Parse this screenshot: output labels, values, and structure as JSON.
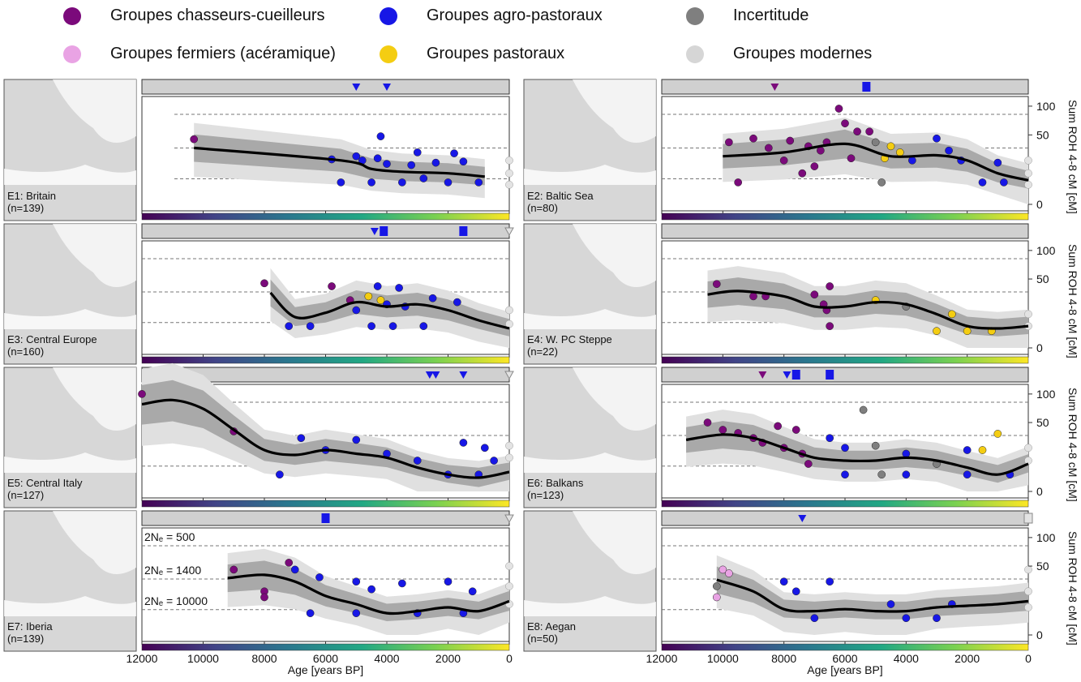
{
  "legend": [
    {
      "label": "Groupes chasseurs-cueilleurs",
      "color": "#7b0a7b"
    },
    {
      "label": "Groupes agro-pastoraux",
      "color": "#1717e6"
    },
    {
      "label": "Incertitude",
      "color": "#7f7f7f"
    },
    {
      "label": "Groupes fermiers (acéramique)",
      "color": "#e9a3e4"
    },
    {
      "label": "Groupes pastoraux",
      "color": "#f4cd12"
    },
    {
      "label": "Groupes modernes",
      "color": "#d6d6d6"
    }
  ],
  "right_axis_label": "Sum ROH 4-8 cM [cM]",
  "right_ticks": [
    "100",
    "50",
    "0"
  ],
  "x_axis": {
    "label": "Age [years BP]",
    "ticks": [
      12000,
      10000,
      8000,
      6000,
      4000,
      2000,
      0
    ],
    "range": [
      12000,
      0
    ]
  },
  "ne_labels": [
    "2Nₑ = 500",
    "2Nₑ = 1400",
    "2Nₑ = 10000"
  ],
  "chart_data": [
    {
      "type": "scatter",
      "region": "E1: Britain",
      "n": "(n=139)",
      "ages": [
        10300,
        5500,
        4500,
        3500,
        2000,
        800
      ],
      "fit": [
        33,
        20,
        13,
        11,
        10,
        8
      ],
      "markers": [
        {
          "age": 5000,
          "shape": "tri",
          "group": "agro"
        },
        {
          "age": 4000,
          "shape": "tri",
          "group": "agro"
        }
      ],
      "points": [
        [
          10300,
          44,
          "hg"
        ],
        [
          4200,
          48,
          "agro"
        ],
        [
          3000,
          28,
          "agro"
        ],
        [
          1800,
          27,
          "agro"
        ],
        [
          5800,
          21,
          "agro"
        ],
        [
          4800,
          20,
          "agro"
        ],
        [
          4000,
          17,
          "agro"
        ],
        [
          3200,
          16,
          "agro"
        ],
        [
          2400,
          18,
          "agro"
        ],
        [
          1500,
          19,
          "agro"
        ],
        [
          5500,
          5,
          "agro"
        ],
        [
          4500,
          5,
          "agro"
        ],
        [
          3500,
          5,
          "agro"
        ],
        [
          2000,
          5,
          "agro"
        ],
        [
          1000,
          5,
          "agro"
        ],
        [
          5000,
          24,
          "agro"
        ],
        [
          4300,
          22,
          "agro"
        ],
        [
          2800,
          7,
          "agro"
        ],
        [
          0,
          20,
          "modern"
        ],
        [
          0,
          10,
          "modern"
        ],
        [
          0,
          4,
          "modern"
        ]
      ]
    },
    {
      "type": "scatter",
      "region": "E2: Baltic Sea",
      "n": "(n=80)",
      "ages": [
        10000,
        8000,
        6000,
        4500,
        3000,
        2000,
        1000,
        0
      ],
      "fit": [
        24,
        28,
        38,
        24,
        25,
        20,
        10,
        6
      ],
      "markers": [
        {
          "age": 8300,
          "shape": "tri",
          "group": "hg"
        },
        {
          "age": 5300,
          "shape": "sq",
          "group": "agro"
        }
      ],
      "points": [
        [
          9800,
          40,
          "hg"
        ],
        [
          9000,
          45,
          "hg"
        ],
        [
          8500,
          33,
          "hg"
        ],
        [
          7800,
          42,
          "hg"
        ],
        [
          7200,
          35,
          "hg"
        ],
        [
          6600,
          40,
          "hg"
        ],
        [
          6200,
          95,
          "hg"
        ],
        [
          6000,
          68,
          "hg"
        ],
        [
          5600,
          55,
          "hg"
        ],
        [
          5200,
          55,
          "hg"
        ],
        [
          8000,
          20,
          "hg"
        ],
        [
          7400,
          10,
          "hg"
        ],
        [
          6800,
          30,
          "hg"
        ],
        [
          5800,
          22,
          "hg"
        ],
        [
          9500,
          5,
          "hg"
        ],
        [
          7000,
          15,
          "hg"
        ],
        [
          5000,
          40,
          "unc"
        ],
        [
          4800,
          5,
          "unc"
        ],
        [
          4500,
          35,
          "past"
        ],
        [
          4200,
          28,
          "past"
        ],
        [
          4700,
          22,
          "past"
        ],
        [
          3000,
          45,
          "agro"
        ],
        [
          2600,
          30,
          "agro"
        ],
        [
          2200,
          20,
          "agro"
        ],
        [
          3800,
          20,
          "agro"
        ],
        [
          1000,
          18,
          "agro"
        ],
        [
          1500,
          5,
          "agro"
        ],
        [
          800,
          5,
          "agro"
        ],
        [
          0,
          20,
          "modern"
        ],
        [
          0,
          10,
          "modern"
        ],
        [
          0,
          4,
          "modern"
        ]
      ]
    },
    {
      "type": "scatter",
      "region": "E3: Central Europe",
      "n": "(n=160)",
      "ages": [
        7800,
        7000,
        6000,
        5000,
        4000,
        3000,
        2000,
        1000,
        0
      ],
      "fit": [
        32,
        10,
        13,
        22,
        18,
        20,
        15,
        8,
        4
      ],
      "markers": [
        {
          "age": 4400,
          "shape": "tri",
          "group": "agro"
        },
        {
          "age": 4100,
          "shape": "sq",
          "group": "agro"
        },
        {
          "age": 1500,
          "shape": "sq",
          "group": "agro"
        },
        {
          "age": 0,
          "shape": "tri",
          "group": "modern"
        }
      ],
      "points": [
        [
          8000,
          44,
          "hg"
        ],
        [
          5800,
          40,
          "hg"
        ],
        [
          5200,
          24,
          "hg"
        ],
        [
          4600,
          28,
          "past"
        ],
        [
          4200,
          24,
          "past"
        ],
        [
          4300,
          40,
          "agro"
        ],
        [
          3600,
          38,
          "agro"
        ],
        [
          4000,
          20,
          "agro"
        ],
        [
          3400,
          18,
          "agro"
        ],
        [
          2500,
          26,
          "agro"
        ],
        [
          1700,
          22,
          "agro"
        ],
        [
          5000,
          15,
          "agro"
        ],
        [
          7200,
          5,
          "agro"
        ],
        [
          4500,
          5,
          "agro"
        ],
        [
          3800,
          5,
          "agro"
        ],
        [
          2800,
          5,
          "agro"
        ],
        [
          6500,
          5,
          "agro"
        ],
        [
          0,
          15,
          "modern"
        ],
        [
          0,
          6,
          "modern"
        ]
      ]
    },
    {
      "type": "scatter",
      "region": "E4: W. PC Steppe",
      "n": "(n=22)",
      "ages": [
        10500,
        9500,
        8000,
        7000,
        6000,
        5000,
        4000,
        3000,
        2000,
        1000,
        0
      ],
      "fit": [
        30,
        34,
        28,
        18,
        18,
        22,
        20,
        12,
        5,
        4,
        5
      ],
      "markers": [],
      "points": [
        [
          10200,
          43,
          "hg"
        ],
        [
          9000,
          28,
          "hg"
        ],
        [
          8600,
          28,
          "hg"
        ],
        [
          7000,
          30,
          "hg"
        ],
        [
          6500,
          40,
          "hg"
        ],
        [
          6700,
          20,
          "hg"
        ],
        [
          6600,
          15,
          "hg"
        ],
        [
          6500,
          5,
          "hg"
        ],
        [
          5000,
          24,
          "past"
        ],
        [
          4000,
          18,
          "unc"
        ],
        [
          2500,
          12,
          "past"
        ],
        [
          3000,
          3,
          "past"
        ],
        [
          2000,
          3,
          "past"
        ],
        [
          1200,
          3,
          "past"
        ],
        [
          0,
          12,
          "modern"
        ],
        [
          0,
          5,
          "modern"
        ]
      ]
    },
    {
      "type": "scatter",
      "region": "E5: Central Italy",
      "n": "(n=127)",
      "ages": [
        12000,
        11000,
        10000,
        9000,
        8000,
        7000,
        6000,
        5000,
        4000,
        3000,
        2000,
        1000,
        0
      ],
      "fit": [
        80,
        88,
        72,
        40,
        18,
        14,
        18,
        15,
        12,
        6,
        3,
        2,
        4
      ],
      "markers": [
        {
          "age": 10800,
          "shape": "tri",
          "group": "hg"
        },
        {
          "age": 2600,
          "shape": "tri",
          "group": "agro"
        },
        {
          "age": 2400,
          "shape": "tri",
          "group": "agro"
        },
        {
          "age": 1500,
          "shape": "tri",
          "group": "agro"
        },
        {
          "age": 0,
          "shape": "tri",
          "group": "modern"
        }
      ],
      "points": [
        [
          12000,
          100,
          "hg"
        ],
        [
          9000,
          38,
          "hg"
        ],
        [
          6800,
          30,
          "agro"
        ],
        [
          6000,
          18,
          "agro"
        ],
        [
          5000,
          28,
          "agro"
        ],
        [
          4000,
          15,
          "agro"
        ],
        [
          3000,
          10,
          "agro"
        ],
        [
          1500,
          25,
          "agro"
        ],
        [
          800,
          20,
          "agro"
        ],
        [
          500,
          10,
          "agro"
        ],
        [
          7500,
          3,
          "agro"
        ],
        [
          2000,
          3,
          "agro"
        ],
        [
          1000,
          3,
          "agro"
        ],
        [
          0,
          22,
          "modern"
        ],
        [
          0,
          12,
          "modern"
        ]
      ]
    },
    {
      "type": "scatter",
      "region": "E6: Balkans",
      "n": "(n=123)",
      "ages": [
        11200,
        10000,
        9000,
        8000,
        7000,
        6000,
        5000,
        4000,
        3000,
        2000,
        1000,
        0
      ],
      "fit": [
        28,
        34,
        30,
        20,
        12,
        10,
        10,
        12,
        10,
        6,
        3,
        8
      ],
      "markers": [
        {
          "age": 8700,
          "shape": "tri",
          "group": "hg"
        },
        {
          "age": 7900,
          "shape": "tri",
          "group": "agro"
        },
        {
          "age": 7600,
          "shape": "sq",
          "group": "agro"
        },
        {
          "age": 6500,
          "shape": "sq",
          "group": "agro"
        }
      ],
      "points": [
        [
          10500,
          50,
          "hg"
        ],
        [
          10000,
          40,
          "hg"
        ],
        [
          9500,
          36,
          "hg"
        ],
        [
          9000,
          30,
          "hg"
        ],
        [
          8700,
          25,
          "hg"
        ],
        [
          8200,
          45,
          "hg"
        ],
        [
          8000,
          20,
          "hg"
        ],
        [
          7600,
          40,
          "hg"
        ],
        [
          7400,
          15,
          "hg"
        ],
        [
          7200,
          8,
          "hg"
        ],
        [
          5400,
          70,
          "unc"
        ],
        [
          5000,
          22,
          "unc"
        ],
        [
          3000,
          8,
          "unc"
        ],
        [
          4800,
          3,
          "unc"
        ],
        [
          1000,
          35,
          "past"
        ],
        [
          1500,
          18,
          "past"
        ],
        [
          6500,
          30,
          "agro"
        ],
        [
          6000,
          20,
          "agro"
        ],
        [
          4000,
          15,
          "agro"
        ],
        [
          2000,
          18,
          "agro"
        ],
        [
          6000,
          3,
          "agro"
        ],
        [
          4000,
          3,
          "agro"
        ],
        [
          2000,
          3,
          "agro"
        ],
        [
          600,
          3,
          "agro"
        ],
        [
          0,
          20,
          "modern"
        ],
        [
          0,
          10,
          "modern"
        ]
      ]
    },
    {
      "type": "scatter",
      "region": "E7: Iberia",
      "n": "(n=139)",
      "ages": [
        9200,
        8000,
        7000,
        6000,
        5000,
        4000,
        3000,
        2000,
        1000,
        0
      ],
      "fit": [
        34,
        38,
        30,
        16,
        10,
        5,
        6,
        8,
        6,
        12
      ],
      "markers": [
        {
          "age": 6000,
          "shape": "sq",
          "group": "agro"
        },
        {
          "age": 0,
          "shape": "tri",
          "group": "modern"
        }
      ],
      "points": [
        [
          9000,
          45,
          "hg"
        ],
        [
          8000,
          20,
          "hg"
        ],
        [
          8000,
          15,
          "hg"
        ],
        [
          7200,
          55,
          "hg"
        ],
        [
          7000,
          45,
          "agro"
        ],
        [
          6200,
          35,
          "agro"
        ],
        [
          5000,
          30,
          "agro"
        ],
        [
          4500,
          22,
          "agro"
        ],
        [
          3500,
          28,
          "agro"
        ],
        [
          2000,
          30,
          "agro"
        ],
        [
          1200,
          20,
          "agro"
        ],
        [
          6500,
          5,
          "agro"
        ],
        [
          5000,
          5,
          "agro"
        ],
        [
          3000,
          5,
          "agro"
        ],
        [
          1500,
          5,
          "agro"
        ],
        [
          0,
          50,
          "modern"
        ],
        [
          0,
          25,
          "modern"
        ],
        [
          0,
          10,
          "modern"
        ]
      ]
    },
    {
      "type": "scatter",
      "region": "E8: Aegan",
      "n": "(n=50)",
      "ages": [
        10200,
        9000,
        8000,
        7000,
        6000,
        5000,
        4000,
        3000,
        2000,
        1000,
        0
      ],
      "fit": [
        32,
        20,
        7,
        6,
        7,
        6,
        6,
        8,
        9,
        10,
        12
      ],
      "markers": [
        {
          "age": 7400,
          "shape": "tri",
          "group": "agro"
        },
        {
          "age": 0,
          "shape": "sq",
          "group": "modern"
        }
      ],
      "points": [
        [
          10000,
          45,
          "afarm"
        ],
        [
          9800,
          40,
          "afarm"
        ],
        [
          10200,
          15,
          "afarm"
        ],
        [
          10200,
          25,
          "unc"
        ],
        [
          8000,
          30,
          "agro"
        ],
        [
          7600,
          20,
          "agro"
        ],
        [
          6500,
          30,
          "agro"
        ],
        [
          4500,
          10,
          "agro"
        ],
        [
          2500,
          10,
          "agro"
        ],
        [
          7000,
          3,
          "agro"
        ],
        [
          4000,
          3,
          "agro"
        ],
        [
          3000,
          3,
          "agro"
        ],
        [
          0,
          45,
          "modern"
        ],
        [
          0,
          20,
          "modern"
        ],
        [
          0,
          8,
          "modern"
        ]
      ]
    }
  ]
}
